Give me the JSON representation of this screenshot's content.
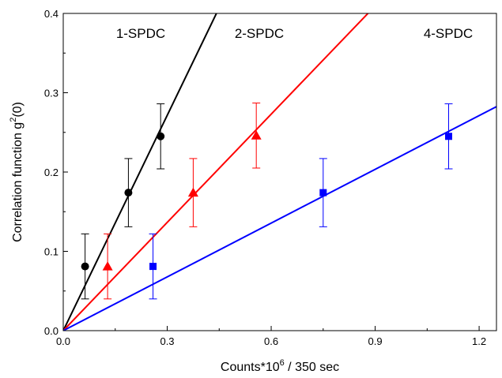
{
  "chart_data": {
    "type": "scatter",
    "title": "",
    "xlabel_main": "Counts*10",
    "xlabel_sup": "6",
    "xlabel_rest": " / 350 sec",
    "ylabel_main": "Correlation function g",
    "ylabel_sup": "2",
    "ylabel_rest": "(0)",
    "xlim": [
      0.0,
      1.25
    ],
    "ylim": [
      0.0,
      0.4
    ],
    "xticks": [
      0.0,
      0.3,
      0.6,
      0.9,
      1.2
    ],
    "xtick_labels": [
      "0.0",
      "0.3",
      "0.6",
      "0.9",
      "1.2"
    ],
    "yticks": [
      0.0,
      0.1,
      0.2,
      0.3,
      0.4
    ],
    "ytick_labels": [
      "0.0",
      "0.1",
      "0.2",
      "0.3",
      "0.4"
    ],
    "grid": false,
    "legend": "none",
    "series": [
      {
        "name": "1-SPDC",
        "color": "#000000",
        "marker": "circle",
        "x": [
          0.063,
          0.188,
          0.281
        ],
        "y": [
          0.081,
          0.174,
          0.245
        ],
        "err": [
          0.041,
          0.043,
          0.041
        ],
        "fit_slope": 0.905
      },
      {
        "name": "2-SPDC",
        "color": "#ff0000",
        "marker": "triangle",
        "x": [
          0.128,
          0.375,
          0.557
        ],
        "y": [
          0.081,
          0.174,
          0.246
        ],
        "err": [
          0.041,
          0.043,
          0.041
        ],
        "fit_slope": 0.455
      },
      {
        "name": "4-SPDC",
        "color": "#0000ff",
        "marker": "square",
        "x": [
          0.259,
          0.75,
          1.112
        ],
        "y": [
          0.081,
          0.174,
          0.245
        ],
        "err": [
          0.041,
          0.043,
          0.041
        ],
        "fit_slope": 0.226
      }
    ],
    "annotations": [
      "1-SPDC",
      "2-SPDC",
      "4-SPDC"
    ]
  }
}
